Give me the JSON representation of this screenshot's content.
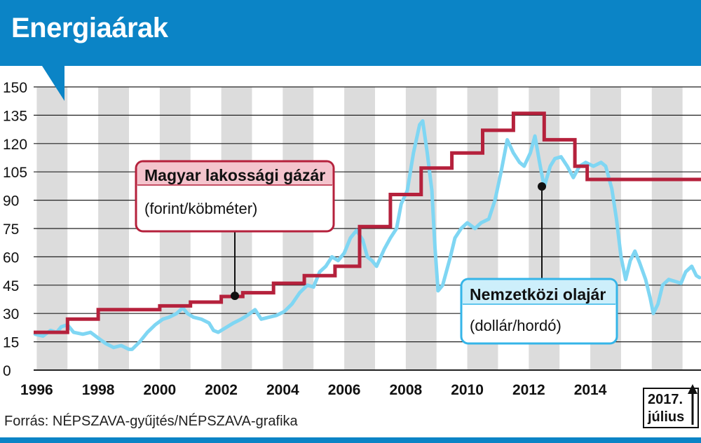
{
  "title": "Energiaárak",
  "source": "Forrás: NÉPSZAVA-gyűjtés/NÉPSZAVA-grafika",
  "colors": {
    "accent": "#0b84c6",
    "gas": "#b5213c",
    "oil": "#7fd6f3",
    "stripe": "#dcdcdc"
  },
  "labels": {
    "gas_title": "Magyar lakossági gázár",
    "gas_unit": "(forint/köbméter)",
    "oil_title": "Nemzetközi olajár",
    "oil_unit": "(dollár/hordó)",
    "end_year": "2017.",
    "end_month": "július"
  },
  "chart_data": {
    "type": "line",
    "title": "Energiaárak",
    "xlim": [
      1995.9,
      2017.6
    ],
    "ylim": [
      0,
      150
    ],
    "y_ticks": [
      0,
      15,
      30,
      45,
      60,
      75,
      90,
      105,
      120,
      135,
      150
    ],
    "x_ticks": [
      1996,
      1998,
      2000,
      2002,
      2004,
      2006,
      2008,
      2010,
      2012,
      2014
    ],
    "x_tick_labels": [
      "1996",
      "1998",
      "2000",
      "2002",
      "2004",
      "2006",
      "2008",
      "2010",
      "2012",
      "2014"
    ],
    "grid": "alternating vertical year bands",
    "series": [
      {
        "name": "Magyar lakossági gázár",
        "unit": "forint/köbméter",
        "step": true,
        "points": [
          [
            1995.9,
            20
          ],
          [
            1997.0,
            20
          ],
          [
            1997.0,
            27
          ],
          [
            1998.0,
            27
          ],
          [
            1998.0,
            32
          ],
          [
            2000.0,
            32
          ],
          [
            2000.0,
            34
          ],
          [
            2001.0,
            34
          ],
          [
            2001.0,
            36
          ],
          [
            2002.0,
            36
          ],
          [
            2002.0,
            39
          ],
          [
            2002.7,
            39
          ],
          [
            2002.7,
            41
          ],
          [
            2003.7,
            41
          ],
          [
            2003.7,
            46
          ],
          [
            2004.7,
            46
          ],
          [
            2004.7,
            50
          ],
          [
            2005.7,
            50
          ],
          [
            2005.7,
            55
          ],
          [
            2006.5,
            55
          ],
          [
            2006.5,
            76
          ],
          [
            2007.5,
            76
          ],
          [
            2007.5,
            93
          ],
          [
            2008.5,
            93
          ],
          [
            2008.5,
            107
          ],
          [
            2009.5,
            107
          ],
          [
            2009.5,
            115
          ],
          [
            2010.5,
            115
          ],
          [
            2010.5,
            127
          ],
          [
            2011.5,
            127
          ],
          [
            2011.5,
            136
          ],
          [
            2012.5,
            136
          ],
          [
            2012.5,
            122
          ],
          [
            2013.5,
            122
          ],
          [
            2013.5,
            108
          ],
          [
            2013.9,
            108
          ],
          [
            2013.9,
            101
          ],
          [
            2017.6,
            101
          ]
        ]
      },
      {
        "name": "Nemzetközi olajár",
        "unit": "dollár/hordó",
        "points": [
          [
            1995.95,
            19
          ],
          [
            1996.2,
            18
          ],
          [
            1996.45,
            21
          ],
          [
            1996.65,
            20
          ],
          [
            1996.8,
            23
          ],
          [
            1997.0,
            24
          ],
          [
            1997.2,
            20
          ],
          [
            1997.5,
            19
          ],
          [
            1997.75,
            20
          ],
          [
            1998.0,
            17
          ],
          [
            1998.25,
            14
          ],
          [
            1998.5,
            12
          ],
          [
            1998.75,
            13
          ],
          [
            1999.0,
            11
          ],
          [
            1999.1,
            11
          ],
          [
            1999.35,
            15
          ],
          [
            1999.6,
            20
          ],
          [
            1999.85,
            24
          ],
          [
            2000.1,
            27
          ],
          [
            2000.3,
            28
          ],
          [
            2000.55,
            30
          ],
          [
            2000.75,
            33
          ],
          [
            2000.9,
            30
          ],
          [
            2001.1,
            28
          ],
          [
            2001.35,
            27
          ],
          [
            2001.6,
            25
          ],
          [
            2001.75,
            21
          ],
          [
            2001.9,
            20
          ],
          [
            2002.1,
            22
          ],
          [
            2002.4,
            25
          ],
          [
            2002.65,
            27
          ],
          [
            2002.85,
            29
          ],
          [
            2003.1,
            32
          ],
          [
            2003.3,
            27
          ],
          [
            2003.55,
            28
          ],
          [
            2003.8,
            29
          ],
          [
            2004.05,
            31
          ],
          [
            2004.3,
            35
          ],
          [
            2004.55,
            41
          ],
          [
            2004.8,
            45
          ],
          [
            2005.0,
            44
          ],
          [
            2005.2,
            52
          ],
          [
            2005.4,
            55
          ],
          [
            2005.6,
            60
          ],
          [
            2005.8,
            58
          ],
          [
            2006.0,
            62
          ],
          [
            2006.2,
            70
          ],
          [
            2006.4,
            74
          ],
          [
            2006.6,
            69
          ],
          [
            2006.75,
            60
          ],
          [
            2006.9,
            58
          ],
          [
            2007.05,
            55
          ],
          [
            2007.3,
            64
          ],
          [
            2007.5,
            70
          ],
          [
            2007.7,
            75
          ],
          [
            2007.85,
            88
          ],
          [
            2008.05,
            95
          ],
          [
            2008.25,
            115
          ],
          [
            2008.45,
            130
          ],
          [
            2008.55,
            132
          ],
          [
            2008.7,
            115
          ],
          [
            2008.85,
            95
          ],
          [
            2008.95,
            65
          ],
          [
            2009.05,
            42
          ],
          [
            2009.2,
            45
          ],
          [
            2009.45,
            60
          ],
          [
            2009.6,
            70
          ],
          [
            2009.8,
            75
          ],
          [
            2010.0,
            78
          ],
          [
            2010.25,
            75
          ],
          [
            2010.45,
            78
          ],
          [
            2010.7,
            80
          ],
          [
            2010.9,
            90
          ],
          [
            2011.1,
            105
          ],
          [
            2011.3,
            122
          ],
          [
            2011.5,
            115
          ],
          [
            2011.7,
            110
          ],
          [
            2011.85,
            108
          ],
          [
            2012.05,
            115
          ],
          [
            2012.2,
            124
          ],
          [
            2012.35,
            110
          ],
          [
            2012.5,
            97
          ],
          [
            2012.7,
            108
          ],
          [
            2012.85,
            112
          ],
          [
            2013.05,
            113
          ],
          [
            2013.25,
            108
          ],
          [
            2013.45,
            102
          ],
          [
            2013.65,
            108
          ],
          [
            2013.85,
            110
          ],
          [
            2014.1,
            108
          ],
          [
            2014.35,
            110
          ],
          [
            2014.5,
            108
          ],
          [
            2014.7,
            96
          ],
          [
            2014.85,
            80
          ],
          [
            2015.0,
            60
          ],
          [
            2015.15,
            48
          ],
          [
            2015.3,
            58
          ],
          [
            2015.45,
            63
          ],
          [
            2015.6,
            57
          ],
          [
            2015.8,
            48
          ],
          [
            2015.95,
            38
          ],
          [
            2016.05,
            30
          ],
          [
            2016.2,
            35
          ],
          [
            2016.35,
            45
          ],
          [
            2016.55,
            48
          ],
          [
            2016.75,
            47
          ],
          [
            2016.95,
            46
          ],
          [
            2017.1,
            52
          ],
          [
            2017.3,
            55
          ],
          [
            2017.45,
            50
          ],
          [
            2017.55,
            49
          ]
        ]
      }
    ]
  }
}
